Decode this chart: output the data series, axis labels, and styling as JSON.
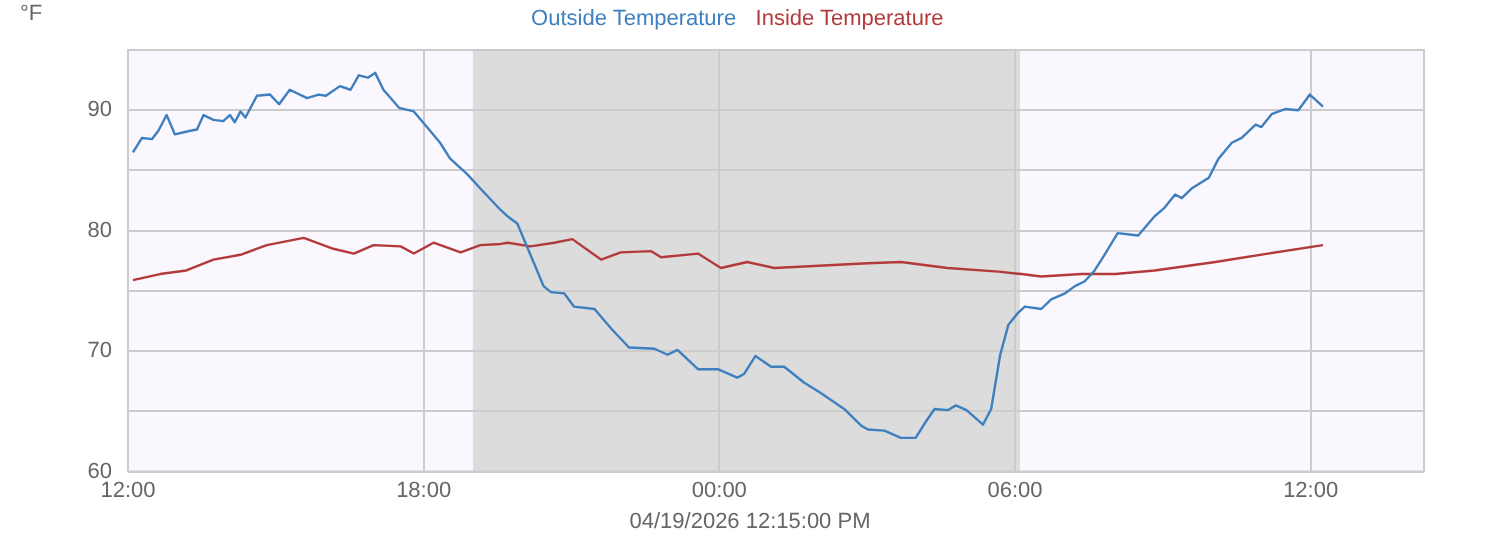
{
  "chart_data": {
    "type": "line",
    "ylabel": "°F",
    "legend": "top",
    "grid": true,
    "marker": "none",
    "line_style": "solid",
    "xlim": [
      "2026-04-18T12:00",
      "2026-04-19T14:18"
    ],
    "xticks": [
      {
        "value": "2026-04-18T12:00",
        "label": "12:00"
      },
      {
        "value": "2026-04-18T18:00",
        "label": "18:00"
      },
      {
        "value": "2026-04-19T00:00",
        "label": "00:00"
      },
      {
        "value": "2026-04-19T06:00",
        "label": "06:00"
      },
      {
        "value": "2026-04-19T12:00",
        "label": "12:00"
      }
    ],
    "ylim": [
      60,
      95
    ],
    "yticks": [
      60,
      {
        "value": 65,
        "label": null
      },
      70,
      {
        "value": 75,
        "label": null
      },
      80,
      {
        "value": 85,
        "label": null
      },
      90,
      {
        "value": 95,
        "label": null
      }
    ],
    "bands": [
      {
        "axis": "x",
        "from": "2026-04-18T19:00",
        "to": "2026-04-19T06:06",
        "color": "#dcdcdc"
      }
    ],
    "annotations": [
      "04/19/2026 12:15:00 PM"
    ],
    "series": [
      {
        "name": "Outside Temperature",
        "color": "#3d7fbf",
        "x": [
          "2026-04-18T12:06",
          "2026-04-18T12:17",
          "2026-04-18T12:29",
          "2026-04-18T12:37",
          "2026-04-18T12:47",
          "2026-04-18T12:57",
          "2026-04-18T13:16",
          "2026-04-18T13:24",
          "2026-04-18T13:32",
          "2026-04-18T13:44",
          "2026-04-18T13:56",
          "2026-04-18T14:04",
          "2026-04-18T14:10",
          "2026-04-18T14:17",
          "2026-04-18T14:23",
          "2026-04-18T14:37",
          "2026-04-18T14:53",
          "2026-04-18T15:04",
          "2026-04-18T15:17",
          "2026-04-18T15:38",
          "2026-04-18T15:52",
          "2026-04-18T16:01",
          "2026-04-18T16:18",
          "2026-04-18T16:31",
          "2026-04-18T16:41",
          "2026-04-18T16:52",
          "2026-04-18T17:01",
          "2026-04-18T17:11",
          "2026-04-18T17:30",
          "2026-04-18T17:48",
          "2026-04-18T18:04",
          "2026-04-18T18:20",
          "2026-04-18T18:32",
          "2026-04-18T18:53",
          "2026-04-18T19:09",
          "2026-04-18T19:34",
          "2026-04-18T19:42",
          "2026-04-18T19:54",
          "2026-04-18T20:10",
          "2026-04-18T20:26",
          "2026-04-18T20:35",
          "2026-04-18T20:51",
          "2026-04-18T21:03",
          "2026-04-18T21:28",
          "2026-04-18T21:48",
          "2026-04-18T22:10",
          "2026-04-18T22:41",
          "2026-04-18T22:57",
          "2026-04-18T23:09",
          "2026-04-18T23:34",
          "2026-04-18T23:58",
          "2026-04-19T00:22",
          "2026-04-19T00:30",
          "2026-04-19T00:44",
          "2026-04-19T01:03",
          "2026-04-19T01:19",
          "2026-04-19T01:43",
          "2026-04-19T02:04",
          "2026-04-19T02:32",
          "2026-04-19T02:53",
          "2026-04-19T03:01",
          "2026-04-19T03:21",
          "2026-04-19T03:41",
          "2026-04-19T03:59",
          "2026-04-19T04:12",
          "2026-04-19T04:22",
          "2026-04-19T04:38",
          "2026-04-19T04:48",
          "2026-04-19T05:01",
          "2026-04-19T05:21",
          "2026-04-19T05:31",
          "2026-04-19T05:42",
          "2026-04-19T05:52",
          "2026-04-19T06:04",
          "2026-04-19T06:12",
          "2026-04-19T06:32",
          "2026-04-19T06:44",
          "2026-04-19T07:01",
          "2026-04-19T07:13",
          "2026-04-19T07:25",
          "2026-04-19T07:37",
          "2026-04-19T07:49",
          "2026-04-19T08:05",
          "2026-04-19T08:30",
          "2026-04-19T08:50",
          "2026-04-19T09:02",
          "2026-04-19T09:15",
          "2026-04-19T09:23",
          "2026-04-19T09:35",
          "2026-04-19T09:56",
          "2026-04-19T10:08",
          "2026-04-19T10:24",
          "2026-04-19T10:36",
          "2026-04-19T10:53",
          "2026-04-19T11:00",
          "2026-04-19T11:13",
          "2026-04-19T11:29",
          "2026-04-19T11:45",
          "2026-04-19T11:59",
          "2026-04-19T12:15"
        ],
        "values": [
          86.5,
          87.7,
          87.6,
          88.3,
          89.6,
          88.0,
          88.3,
          88.4,
          89.6,
          89.2,
          89.1,
          89.6,
          89.0,
          89.9,
          89.4,
          91.2,
          91.3,
          90.5,
          91.7,
          91.0,
          91.3,
          91.2,
          92.0,
          91.7,
          92.9,
          92.7,
          93.1,
          91.7,
          90.2,
          89.9,
          88.6,
          87.3,
          86.0,
          84.7,
          83.5,
          81.7,
          81.2,
          80.6,
          78.0,
          75.4,
          74.9,
          74.8,
          73.7,
          73.5,
          71.9,
          70.3,
          70.2,
          69.7,
          70.1,
          68.5,
          68.5,
          67.8,
          68.1,
          69.6,
          68.7,
          68.7,
          67.4,
          66.5,
          65.2,
          63.8,
          63.5,
          63.4,
          62.8,
          62.8,
          64.2,
          65.2,
          65.1,
          65.5,
          65.1,
          63.9,
          65.2,
          69.7,
          72.2,
          73.2,
          73.7,
          73.5,
          74.3,
          74.8,
          75.4,
          75.8,
          76.7,
          78.0,
          79.8,
          79.6,
          81.2,
          81.9,
          83.0,
          82.7,
          83.5,
          84.4,
          86.0,
          87.3,
          87.7,
          88.8,
          88.6,
          89.7,
          90.1,
          90.0,
          91.3,
          90.3
        ]
      },
      {
        "name": "Inside Temperature",
        "color": "#b33a3a",
        "x": [
          "2026-04-18T12:06",
          "2026-04-18T12:39",
          "2026-04-18T13:11",
          "2026-04-18T13:44",
          "2026-04-18T14:17",
          "2026-04-18T14:49",
          "2026-04-18T15:34",
          "2026-04-18T16:10",
          "2026-04-18T16:35",
          "2026-04-18T16:59",
          "2026-04-18T17:32",
          "2026-04-18T17:48",
          "2026-04-18T18:12",
          "2026-04-18T18:45",
          "2026-04-18T19:09",
          "2026-04-18T19:34",
          "2026-04-18T19:42",
          "2026-04-18T20:10",
          "2026-04-18T20:39",
          "2026-04-18T21:01",
          "2026-04-18T21:36",
          "2026-04-18T22:00",
          "2026-04-18T22:37",
          "2026-04-18T22:49",
          "2026-04-18T23:34",
          "2026-04-19T00:02",
          "2026-04-19T00:34",
          "2026-04-19T01:07",
          "2026-04-19T03:01",
          "2026-04-19T03:41",
          "2026-04-19T04:38",
          "2026-04-19T05:40",
          "2026-04-19T06:08",
          "2026-04-19T06:32",
          "2026-04-19T07:21",
          "2026-04-19T08:02",
          "2026-04-19T08:50",
          "2026-04-19T10:04",
          "2026-04-19T11:08",
          "2026-04-19T12:15"
        ],
        "values": [
          75.9,
          76.4,
          76.7,
          77.6,
          78.0,
          78.8,
          79.4,
          78.5,
          78.1,
          78.8,
          78.7,
          78.1,
          79.0,
          78.2,
          78.8,
          78.9,
          79.0,
          78.7,
          79.0,
          79.3,
          77.6,
          78.2,
          78.3,
          77.8,
          78.1,
          76.9,
          77.4,
          76.9,
          77.3,
          77.4,
          76.9,
          76.6,
          76.4,
          76.2,
          76.4,
          76.4,
          76.7,
          77.4,
          78.1,
          78.8
        ]
      }
    ]
  }
}
